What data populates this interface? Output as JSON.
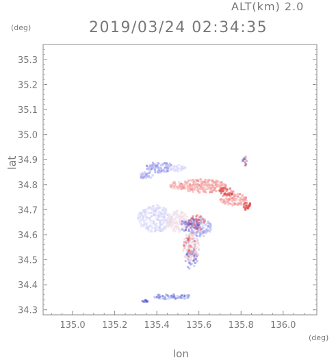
{
  "header": {
    "altitude_label": "ALT(km) 2.0",
    "datetime": "2019/03/24 02:34:35"
  },
  "axes": {
    "y_unit": "(deg)",
    "x_unit": "(deg)",
    "y_label": "lat",
    "x_label": "lon",
    "x_ticks": [
      "135.0",
      "135.2",
      "135.4",
      "135.6",
      "135.8",
      "136.0"
    ],
    "y_ticks": [
      "35.3",
      "35.2",
      "35.1",
      "35.0",
      "34.9",
      "34.8",
      "34.7",
      "34.6",
      "34.5",
      "34.4",
      "34.3"
    ]
  },
  "chart_data": {
    "type": "heatmap",
    "xlim": [
      134.86,
      136.16
    ],
    "ylim": [
      34.28,
      35.36
    ],
    "grid": false,
    "colors": {
      "positive": "#f4a0a0",
      "negative": "#a0a0f0",
      "frame": "#888888"
    }
  }
}
